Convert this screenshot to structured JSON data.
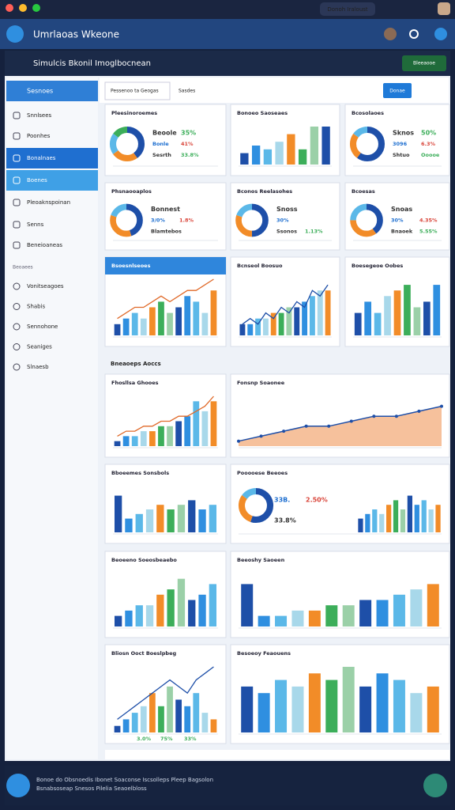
{
  "window": {
    "badge": "Donoh Iraloust"
  },
  "header": {
    "title": "Umrlaoas Wkeone"
  },
  "toolbar": {
    "title": "Simulcis Bkonil Imoglbocnean",
    "button": "Bleeaooe"
  },
  "sidebar": {
    "heading": "Sesnoes",
    "items": [
      "Snnlsees",
      "Poonhes",
      "Bonalnaes",
      "Boenes",
      "Pleoaknspoinan",
      "Senns",
      "Beneioaneas"
    ],
    "section": "Beoaees",
    "items2": [
      "Vonitseagoes",
      "Shabis",
      "Sennohone",
      "Seaniges",
      "Slnaesb"
    ]
  },
  "tabs": [
    "Pessenoo ta Geogas",
    "Sasdes"
  ],
  "action": "Donae",
  "section_title": "Bneaoeps Aoccs",
  "palette": [
    "#1e4fa8",
    "#2f8fe0",
    "#5bb8e8",
    "#a8d8ea",
    "#f28c28",
    "#3cae5a",
    "#9bd0a8"
  ],
  "widgets": [
    {
      "title": "Pleesinoroemes",
      "type": "donut",
      "values": [
        40,
        25,
        20,
        15
      ],
      "stats": [
        "Beoole",
        "35%",
        "Bonle",
        "41%",
        "Sesrth",
        "33.8%"
      ]
    },
    {
      "title": "Bonoeo Saoseaes",
      "type": "bar",
      "ymax": 10,
      "values": [
        3,
        5,
        4,
        6,
        8,
        4,
        10,
        10
      ]
    },
    {
      "title": "Bcosolaoes",
      "type": "donut",
      "values": [
        60,
        25,
        15
      ],
      "stats": [
        "Sknos",
        "50%",
        "3096",
        "6.3%",
        "Shtuo",
        "Ooooe"
      ]
    },
    {
      "title": "Phsnaooaplos",
      "type": "donut",
      "values": [
        45,
        35,
        20
      ],
      "stats": [
        "Bonnest",
        "",
        "3/0%",
        "1.8%",
        "Blamtebos",
        ""
      ]
    },
    {
      "title": "Bconos Reelasohes",
      "type": "donut",
      "values": [
        50,
        30,
        20
      ],
      "stats": [
        "Snoss",
        "",
        "30%",
        "",
        "Ssonos",
        "1.13%"
      ]
    },
    {
      "title": "Bcoesas",
      "type": "donut",
      "values": [
        40,
        35,
        25
      ],
      "stats": [
        "Snoas",
        "",
        "30%",
        "4.35%",
        "Bnaoek",
        "5.55%"
      ]
    },
    {
      "title": "Bsoesnlseoes",
      "type": "linebar",
      "ymax": 10,
      "values": [
        2,
        3,
        4,
        3,
        5,
        6,
        4,
        5,
        7,
        6,
        4,
        8
      ],
      "line": [
        3,
        4,
        5,
        5,
        6,
        7,
        6,
        7,
        8,
        8,
        9,
        10
      ]
    },
    {
      "title": "Bcnseol Boosuo",
      "type": "linebar",
      "ymax": 10,
      "values": [
        2,
        2,
        3,
        3,
        4,
        4,
        5,
        5,
        6,
        7,
        8,
        8
      ],
      "line": [
        2,
        3,
        2,
        4,
        3,
        5,
        4,
        6,
        5,
        8,
        7,
        9
      ]
    },
    {
      "title": "Boesegeoe Oobes",
      "type": "bar",
      "ymax": 10,
      "values": [
        4,
        6,
        4,
        7,
        8,
        9,
        5,
        6,
        9
      ]
    },
    {
      "title": "Fhosllsa Ghooes",
      "type": "linebar",
      "ymax": 10,
      "values": [
        1,
        2,
        2,
        3,
        3,
        4,
        4,
        5,
        6,
        9,
        7,
        9
      ],
      "line": [
        2,
        3,
        3,
        4,
        4,
        5,
        5,
        6,
        6,
        7,
        8,
        10
      ]
    },
    {
      "title": "Fonsnp Soaonee",
      "type": "area",
      "ymax": 10,
      "values": [
        1,
        2,
        3,
        4,
        4,
        5,
        6,
        6,
        7,
        8
      ]
    },
    {
      "title": "Bboeemes Sonsbols",
      "type": "bar",
      "ymax": 10,
      "values": [
        8,
        3,
        4,
        5,
        6,
        5,
        6,
        7,
        5,
        6
      ]
    },
    {
      "title": "Pooooese Beeoes",
      "type": "donutbar",
      "ymax": 10,
      "values": [
        3,
        4,
        5,
        4,
        6,
        7,
        5,
        8,
        6,
        7,
        5,
        6
      ],
      "donut": [
        55,
        30,
        15
      ],
      "stats": [
        "33B.",
        "2.50%",
        "33.8%"
      ]
    },
    {
      "title": "Beoeeno Soeosbeaebo",
      "type": "bar",
      "ymax": 10,
      "values": [
        2,
        3,
        4,
        4,
        6,
        7,
        9,
        5,
        6,
        8
      ]
    },
    {
      "title": "Beeoshy Saoeen",
      "type": "bar",
      "ymax": 10,
      "values": [
        8,
        2,
        2,
        3,
        3,
        4,
        4,
        5,
        5,
        6,
        7,
        8
      ]
    },
    {
      "title": "Bliosn Ooct Boeslpbeg",
      "type": "linebar",
      "ymax": 10,
      "values": [
        1,
        2,
        3,
        4,
        6,
        4,
        7,
        5,
        4,
        6,
        3,
        2
      ],
      "line": [
        2,
        3,
        4,
        5,
        6,
        7,
        8,
        7,
        6,
        8,
        9,
        10
      ],
      "stats": [
        "3.0%",
        "75%",
        "33%"
      ]
    },
    {
      "title": "Besoeoy Feaouens",
      "type": "bar",
      "ymax": 10,
      "values": [
        7,
        6,
        8,
        7,
        9,
        8,
        10,
        7,
        9,
        8,
        6,
        7
      ]
    }
  ],
  "footer": {
    "lines": [
      "Bonoe do Obsnoedis Ibonet Soaconse Iscsolleps Pleep Bagsolon",
      "Bsnabsoseap Snesos Pilelia Seaoelbloss"
    ]
  }
}
